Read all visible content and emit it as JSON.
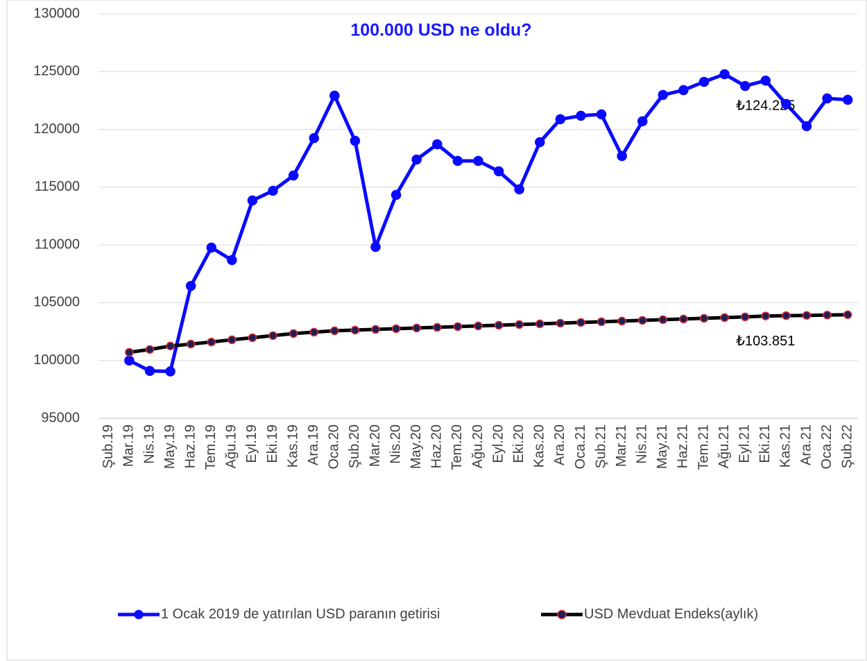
{
  "chart_data": {
    "type": "line",
    "title": "100.000 USD ne oldu?",
    "categories": [
      "Şub.19",
      "Mar.19",
      "Nis.19",
      "May.19",
      "Haz.19",
      "Tem.19",
      "Ağu.19",
      "Eyl.19",
      "Eki.19",
      "Kas.19",
      "Ara.19",
      "Oca.20",
      "Şub.20",
      "Mar.20",
      "Nis.20",
      "May.20",
      "Haz.20",
      "Tem.20",
      "Ağu.20",
      "Eyl.20",
      "Eki.20",
      "Kas.20",
      "Ara.20",
      "Oca.21",
      "Şub.21",
      "Mar.21",
      "Nis.21",
      "May.21",
      "Haz.21",
      "Tem.21",
      "Ağu.21",
      "Eyl.21",
      "Eki.21",
      "Kas.21",
      "Ara.21",
      "Oca.22",
      "Şub.22"
    ],
    "series": [
      {
        "name": "1 Ocak 2019 de yatırılan USD paranın getirisi",
        "color": "#0a0aff",
        "values": [
          null,
          100000,
          99100,
          99050,
          106450,
          109770,
          108690,
          113850,
          114690,
          116010,
          119250,
          122920,
          119010,
          109830,
          114330,
          117390,
          118710,
          117270,
          117270,
          116370,
          114810,
          118890,
          120880,
          121180,
          121300,
          117690,
          120700,
          122980,
          123400,
          124120,
          124780,
          123760,
          124225,
          122200,
          120280,
          122680,
          122560
        ],
        "value_labels": [
          null,
          null,
          null,
          null,
          null,
          null,
          null,
          null,
          null,
          null,
          null,
          null,
          null,
          null,
          null,
          null,
          null,
          null,
          null,
          null,
          null,
          null,
          null,
          null,
          null,
          null,
          null,
          null,
          null,
          null,
          null,
          null,
          "₺124.225",
          null,
          null,
          null,
          null
        ]
      },
      {
        "name": "USD Mevduat Endeks(aylık)",
        "color": "#000000",
        "values": [
          null,
          100710,
          100950,
          101250,
          101420,
          101600,
          101790,
          101970,
          102150,
          102330,
          102450,
          102570,
          102630,
          102690,
          102750,
          102810,
          102870,
          102930,
          102990,
          103050,
          103110,
          103170,
          103230,
          103290,
          103350,
          103410,
          103470,
          103530,
          103590,
          103650,
          103710,
          103770,
          103851,
          103880,
          103900,
          103930,
          103960
        ],
        "value_labels": [
          null,
          null,
          null,
          null,
          null,
          null,
          null,
          null,
          null,
          null,
          null,
          null,
          null,
          null,
          null,
          null,
          null,
          null,
          null,
          null,
          null,
          null,
          null,
          null,
          null,
          null,
          null,
          null,
          null,
          null,
          null,
          null,
          "₺103.851",
          null,
          null,
          null,
          null
        ]
      }
    ],
    "ylim": [
      95000,
      130000
    ],
    "yticks": [
      95000,
      100000,
      105000,
      110000,
      115000,
      120000,
      125000,
      130000
    ],
    "grid": true,
    "legend": "bottom"
  }
}
